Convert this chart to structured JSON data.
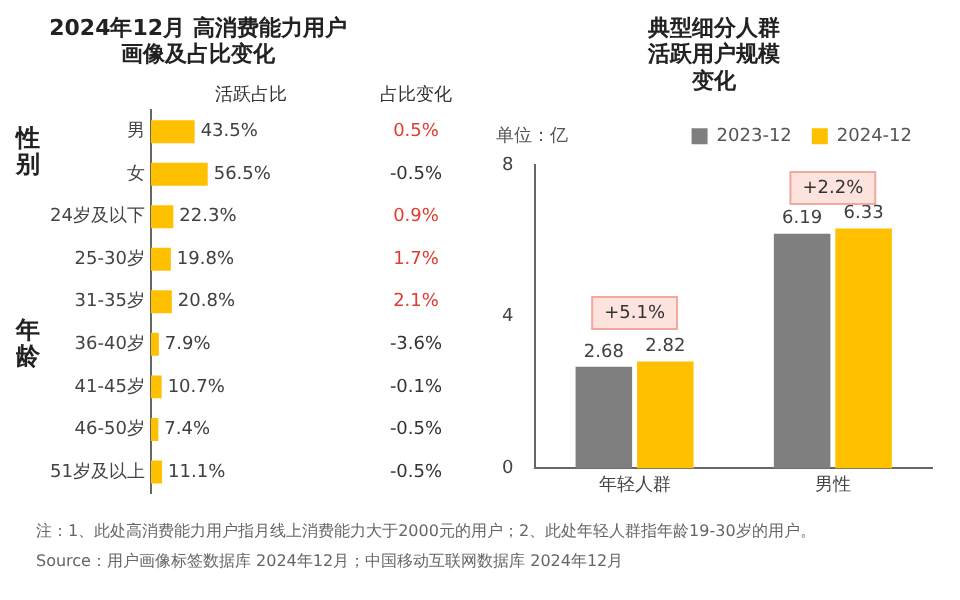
{
  "chart_data": [
    {
      "type": "bar",
      "orientation": "horizontal",
      "title": "2024年12月 高消费能力用户画像及占比变化",
      "xlabel": "活跃占比",
      "categories": [
        "男",
        "女",
        "24岁及以下",
        "25-30岁",
        "31-35岁",
        "36-40岁",
        "41-45岁",
        "46-50岁",
        "51岁及以上"
      ],
      "values": [
        43.5,
        56.5,
        22.3,
        19.8,
        20.8,
        7.9,
        10.7,
        7.4,
        11.1
      ],
      "value_labels": [
        "43.5%",
        "56.5%",
        "22.3%",
        "19.8%",
        "20.8%",
        "7.9%",
        "10.7%",
        "7.4%",
        "11.1%"
      ],
      "color": "#ffc000",
      "tick_labels": "y",
      "annotations": [
        "占比变化",
        "0.5%",
        "-0.5%",
        "0.9%",
        "1.7%",
        "2.1%",
        "-3.6%",
        "-0.1%",
        "-0.5%",
        "-0.5%",
        "性别",
        "年龄",
        "注：1、此处高消费能力用户指月线上消费能力大于2000元的用户；2、此处年轻人群指年龄19-30岁的用户。",
        "Source：用户画像标签数据库 2024年12月；中国移动互联网数据库 2024年12月"
      ],
      "legend": false
    },
    {
      "type": "bar",
      "title": "典型细分人群活跃用户规模变化",
      "ylabel": "单位：亿",
      "categories": [
        "年轻人群",
        "男性"
      ],
      "series": [
        {
          "name": "2023-12",
          "color": "#7f7f7f",
          "values": [
            2.68,
            6.19
          ]
        },
        {
          "name": "2024-12",
          "color": "#ffc000",
          "values": [
            2.82,
            6.33
          ]
        }
      ],
      "ylim": [
        0,
        8
      ],
      "yticks": [
        0,
        4,
        8
      ],
      "data_labels": true,
      "legend": "top",
      "grid": false,
      "annotations": [
        {
          "text": "+5.1%",
          "x": "年轻人群",
          "y": 4.1
        },
        {
          "text": "+2.2%",
          "x": "男性",
          "y": 7.4
        }
      ]
    }
  ]
}
